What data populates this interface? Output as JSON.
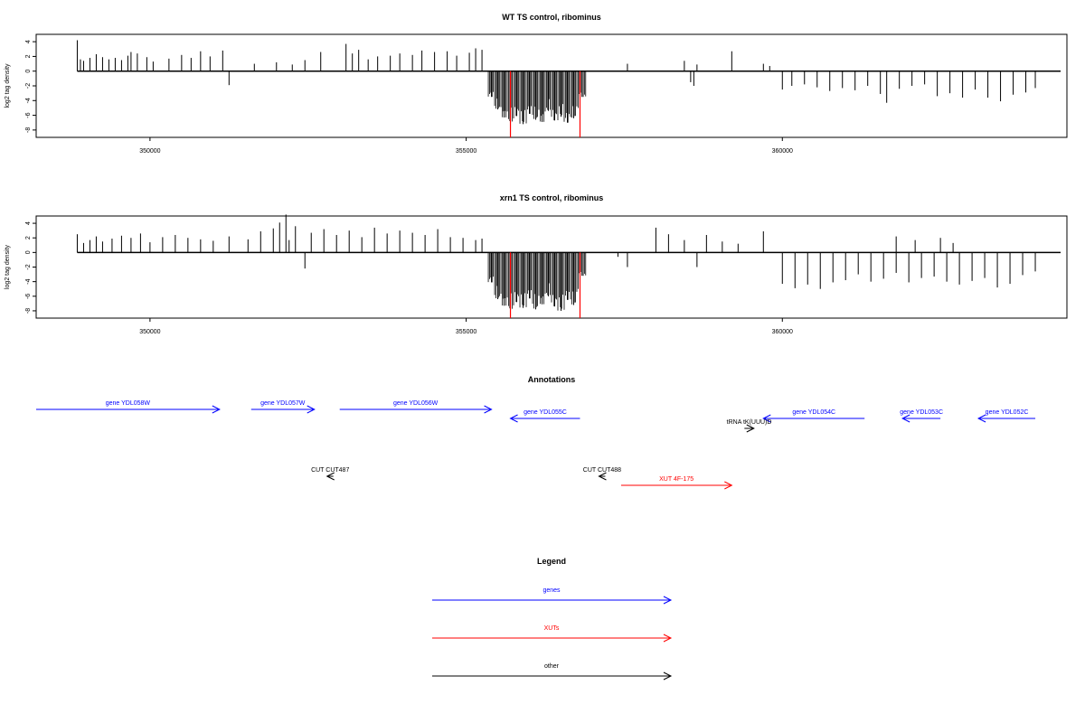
{
  "chart_data": [
    {
      "type": "bar",
      "title": "WT TS control, ribominus",
      "xlabel": "",
      "ylabel": "log2 tag density",
      "xlim": [
        348200,
        364500
      ],
      "ylim": [
        -9,
        5
      ],
      "y_ticks": [
        -8,
        -6,
        -4,
        -2,
        0,
        2,
        4
      ],
      "x_ticks": [
        350000,
        355000,
        360000
      ],
      "x_tick_labels": [
        "350000",
        "355000",
        "360000"
      ],
      "grid": false,
      "legend": "none",
      "colors": {
        "bars": "#000000",
        "highlight": "#ff0000"
      },
      "series": [
        {
          "name": "",
          "values": [
            [
              348850,
              4.2
            ],
            [
              348900,
              1.6
            ],
            [
              348950,
              1.4
            ],
            [
              349050,
              1.8
            ],
            [
              349150,
              2.3
            ],
            [
              349250,
              1.9
            ],
            [
              349350,
              1.6
            ],
            [
              349450,
              1.8
            ],
            [
              349550,
              1.5
            ],
            [
              349650,
              2.1
            ],
            [
              349700,
              2.6
            ],
            [
              349800,
              2.4
            ],
            [
              349950,
              1.9
            ],
            [
              350050,
              1.3
            ],
            [
              350300,
              1.7
            ],
            [
              350500,
              2.2
            ],
            [
              350650,
              1.8
            ],
            [
              350800,
              2.7
            ],
            [
              350950,
              2.0
            ],
            [
              351150,
              2.8
            ],
            [
              351250,
              -1.9
            ],
            [
              351650,
              1.0
            ],
            [
              352000,
              1.2
            ],
            [
              352250,
              0.9
            ],
            [
              352450,
              1.5
            ],
            [
              352700,
              2.6
            ],
            [
              353100,
              3.7
            ],
            [
              353200,
              2.4
            ],
            [
              353300,
              2.9
            ],
            [
              353450,
              1.6
            ],
            [
              353600,
              2.0
            ],
            [
              353800,
              2.1
            ],
            [
              353950,
              2.4
            ],
            [
              354150,
              2.2
            ],
            [
              354300,
              2.8
            ],
            [
              354500,
              2.6
            ],
            [
              354700,
              2.7
            ],
            [
              354850,
              2.1
            ],
            [
              355050,
              2.5
            ],
            [
              355150,
              3.1
            ],
            [
              355250,
              2.9
            ],
            [
              355400,
              -3.5
            ],
            [
              355500,
              -5.2
            ],
            [
              355600,
              -6.3
            ],
            [
              355700,
              -7.0
            ],
            [
              355800,
              -6.1
            ],
            [
              355900,
              -7.2
            ],
            [
              356000,
              -5.8
            ],
            [
              356100,
              -6.6
            ],
            [
              356200,
              -6.9
            ],
            [
              356300,
              -5.4
            ],
            [
              356400,
              -6.7
            ],
            [
              356500,
              -6.2
            ],
            [
              356600,
              -7.0
            ],
            [
              356700,
              -6.4
            ],
            [
              356850,
              -3.5
            ],
            [
              357550,
              1.0
            ],
            [
              358450,
              1.4
            ],
            [
              358650,
              0.9
            ],
            [
              358550,
              -1.5
            ],
            [
              358600,
              -2.0
            ],
            [
              359200,
              2.7
            ],
            [
              359700,
              1.0
            ],
            [
              359800,
              0.7
            ],
            [
              360000,
              -2.5
            ],
            [
              360150,
              -2.0
            ],
            [
              360350,
              -1.8
            ],
            [
              360550,
              -2.2
            ],
            [
              360750,
              -2.7
            ],
            [
              360950,
              -2.3
            ],
            [
              361150,
              -2.6
            ],
            [
              361350,
              -2.0
            ],
            [
              361550,
              -3.1
            ],
            [
              361650,
              -4.3
            ],
            [
              361850,
              -2.4
            ],
            [
              362050,
              -2.0
            ],
            [
              362250,
              -1.8
            ],
            [
              362450,
              -3.4
            ],
            [
              362650,
              -3.0
            ],
            [
              362850,
              -3.6
            ],
            [
              363050,
              -2.5
            ],
            [
              363250,
              -3.6
            ],
            [
              363450,
              -4.1
            ],
            [
              363650,
              -3.2
            ],
            [
              363850,
              -2.9
            ],
            [
              364000,
              -2.3
            ]
          ]
        }
      ],
      "highlights": [
        {
          "x": 355700,
          "y": -9.0
        },
        {
          "x": 356800,
          "y": -9.0
        }
      ]
    },
    {
      "type": "bar",
      "title": "xrn1 TS control, ribominus",
      "xlabel": "",
      "ylabel": "log2 tag density",
      "xlim": [
        348200,
        364500
      ],
      "ylim": [
        -9,
        5
      ],
      "y_ticks": [
        -8,
        -6,
        -4,
        -2,
        0,
        2,
        4
      ],
      "x_ticks": [
        350000,
        355000,
        360000
      ],
      "x_tick_labels": [
        "350000",
        "355000",
        "360000"
      ],
      "grid": false,
      "legend": "none",
      "colors": {
        "bars": "#000000",
        "highlight": "#ff0000"
      },
      "series": [
        {
          "name": "",
          "values": [
            [
              348850,
              2.5
            ],
            [
              348950,
              1.3
            ],
            [
              349050,
              1.7
            ],
            [
              349150,
              2.2
            ],
            [
              349250,
              1.5
            ],
            [
              349400,
              1.9
            ],
            [
              349550,
              2.3
            ],
            [
              349700,
              2.0
            ],
            [
              349850,
              2.6
            ],
            [
              350000,
              1.4
            ],
            [
              350200,
              2.1
            ],
            [
              350400,
              2.4
            ],
            [
              350600,
              2.0
            ],
            [
              350800,
              1.8
            ],
            [
              351000,
              1.6
            ],
            [
              351250,
              2.2
            ],
            [
              351550,
              1.8
            ],
            [
              351750,
              2.9
            ],
            [
              351950,
              3.3
            ],
            [
              352050,
              4.1
            ],
            [
              352150,
              5.2
            ],
            [
              352200,
              1.7
            ],
            [
              352300,
              3.6
            ],
            [
              352450,
              -2.2
            ],
            [
              352550,
              2.7
            ],
            [
              352750,
              3.2
            ],
            [
              352950,
              2.4
            ],
            [
              353150,
              3.0
            ],
            [
              353350,
              2.1
            ],
            [
              353550,
              3.4
            ],
            [
              353750,
              2.6
            ],
            [
              353950,
              3.0
            ],
            [
              354150,
              2.7
            ],
            [
              354350,
              2.4
            ],
            [
              354550,
              3.2
            ],
            [
              354750,
              2.1
            ],
            [
              354950,
              2.0
            ],
            [
              355150,
              1.7
            ],
            [
              355250,
              1.9
            ],
            [
              355400,
              -4.1
            ],
            [
              355500,
              -6.4
            ],
            [
              355600,
              -7.3
            ],
            [
              355700,
              -7.9
            ],
            [
              355800,
              -6.8
            ],
            [
              355900,
              -7.6
            ],
            [
              356000,
              -6.3
            ],
            [
              356100,
              -7.8
            ],
            [
              356200,
              -7.1
            ],
            [
              356300,
              -6.0
            ],
            [
              356400,
              -7.4
            ],
            [
              356500,
              -8.0
            ],
            [
              356600,
              -6.5
            ],
            [
              356700,
              -7.2
            ],
            [
              356850,
              -3.2
            ],
            [
              357400,
              -0.6
            ],
            [
              357550,
              -2.0
            ],
            [
              358000,
              3.4
            ],
            [
              358200,
              2.5
            ],
            [
              358450,
              1.7
            ],
            [
              358650,
              -2.0
            ],
            [
              358800,
              2.4
            ],
            [
              359050,
              1.5
            ],
            [
              359300,
              1.2
            ],
            [
              359700,
              2.9
            ],
            [
              360000,
              -4.3
            ],
            [
              360200,
              -4.9
            ],
            [
              360400,
              -4.4
            ],
            [
              360600,
              -5.0
            ],
            [
              360800,
              -4.1
            ],
            [
              361000,
              -3.8
            ],
            [
              361200,
              -3.0
            ],
            [
              361400,
              -4.0
            ],
            [
              361600,
              -3.6
            ],
            [
              361800,
              -2.8
            ],
            [
              362000,
              -4.1
            ],
            [
              362200,
              -3.5
            ],
            [
              362400,
              -3.3
            ],
            [
              362600,
              -4.0
            ],
            [
              362800,
              -4.4
            ],
            [
              363000,
              -3.9
            ],
            [
              363200,
              -3.5
            ],
            [
              363400,
              -4.8
            ],
            [
              363600,
              -4.3
            ],
            [
              363800,
              -3.1
            ],
            [
              364000,
              -2.6
            ],
            [
              361800,
              2.2
            ],
            [
              362100,
              1.7
            ],
            [
              362500,
              2.0
            ],
            [
              362700,
              1.3
            ]
          ]
        }
      ],
      "highlights": [
        {
          "x": 355700,
          "y": -9.0
        },
        {
          "x": 356800,
          "y": -9.0
        }
      ]
    }
  ],
  "annotations": {
    "title": "Annotations",
    "features": [
      {
        "label": "gene YDL058W",
        "category": "gene",
        "strand": "+",
        "start": 348200,
        "end": 351100,
        "row": 0
      },
      {
        "label": "gene YDL057W",
        "category": "gene",
        "strand": "+",
        "start": 351600,
        "end": 352600,
        "row": 0
      },
      {
        "label": "gene YDL056W",
        "category": "gene",
        "strand": "+",
        "start": 353000,
        "end": 355400,
        "row": 0
      },
      {
        "label": "gene YDL055C",
        "category": "gene",
        "strand": "-",
        "start": 355700,
        "end": 356800,
        "row": 1
      },
      {
        "label": "gene YDL054C",
        "category": "gene",
        "strand": "-",
        "start": 359700,
        "end": 361300,
        "row": 1
      },
      {
        "label": "gene YDL053C",
        "category": "gene",
        "strand": "-",
        "start": 361900,
        "end": 362500,
        "row": 1
      },
      {
        "label": "gene YDL052C",
        "category": "gene",
        "strand": "-",
        "start": 363100,
        "end": 364000,
        "row": 1
      },
      {
        "label": "tRNA tK(UUU)D",
        "category": "other",
        "strand": "+",
        "start": 359400,
        "end": 359550,
        "row": 2
      },
      {
        "label": "CUT CUT487",
        "category": "other",
        "strand": "-",
        "start": 352800,
        "end": 352900,
        "row": 3
      },
      {
        "label": "CUT CUT488",
        "category": "other",
        "strand": "-",
        "start": 357100,
        "end": 357200,
        "row": 3
      },
      {
        "label": "XUT 4F-175",
        "category": "XUT",
        "strand": "+",
        "start": 357450,
        "end": 359200,
        "row": 4
      }
    ]
  },
  "legend": {
    "title": "Legend",
    "items": [
      {
        "label": "genes",
        "color": "#0000ff"
      },
      {
        "label": "XUTs",
        "color": "#ff0000"
      },
      {
        "label": "other",
        "color": "#000000"
      }
    ]
  },
  "colors": {
    "gene": "#0000ff",
    "XUT": "#ff0000",
    "other": "#000000"
  }
}
